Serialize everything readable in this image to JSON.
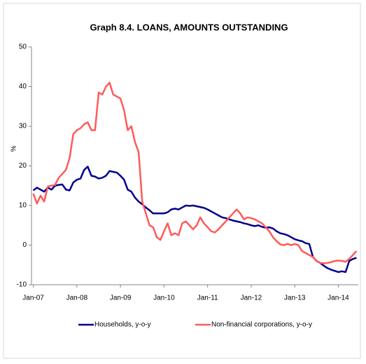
{
  "chart_data": {
    "type": "line",
    "title": "Graph 8.4. LOANS, AMOUNTS OUTSTANDING",
    "y_label": "%",
    "categories": [
      "Jan-07",
      null,
      null,
      null,
      null,
      null,
      null,
      null,
      null,
      null,
      null,
      null,
      "Jan-08",
      null,
      null,
      null,
      null,
      null,
      null,
      null,
      null,
      null,
      null,
      null,
      "Jan-09",
      null,
      null,
      null,
      null,
      null,
      null,
      null,
      null,
      null,
      null,
      null,
      "Jan-10",
      null,
      null,
      null,
      null,
      null,
      null,
      null,
      null,
      null,
      null,
      null,
      "Jan-11",
      null,
      null,
      null,
      null,
      null,
      null,
      null,
      null,
      null,
      null,
      null,
      "Jan-12",
      null,
      null,
      null,
      null,
      null,
      null,
      null,
      null,
      null,
      null,
      null,
      "Jan-13",
      null,
      null,
      null,
      null,
      null,
      null,
      null,
      null,
      null,
      null,
      null,
      "Jan-14",
      null,
      null,
      null,
      null,
      null
    ],
    "series": [
      {
        "name": "Households, y-o-y",
        "color": "#00008b",
        "values": [
          13.8,
          14.5,
          14,
          13.5,
          14.5,
          14,
          15,
          15.2,
          15.3,
          14,
          13.8,
          15.8,
          16.5,
          16.8,
          19,
          19.8,
          17.5,
          17.3,
          16.8,
          17,
          17.5,
          18.7,
          18.5,
          18.3,
          17.5,
          16.5,
          14,
          13.5,
          12,
          11,
          10.3,
          9.5,
          8.8,
          8,
          8,
          8,
          8,
          8.3,
          9,
          9.2,
          9,
          9.5,
          10,
          9.9,
          10,
          9.8,
          9.6,
          9.4,
          9,
          8.5,
          8,
          7.5,
          7,
          6.8,
          6.5,
          6.2,
          6,
          5.8,
          5.5,
          5.3,
          5,
          4.8,
          5,
          4.6,
          4.4,
          4.5,
          4.2,
          3.5,
          3,
          2.8,
          2.5,
          2,
          1.5,
          1.2,
          1,
          0.5,
          0.3,
          -3,
          -4,
          -4.5,
          -5.2,
          -5.8,
          -6.2,
          -6.5,
          -6.8,
          -6.6,
          -6.8,
          -4,
          -3.5,
          -3.2
        ]
      },
      {
        "name": "Non-financial corporations, y-o-y",
        "color": "#ff5a5a",
        "values": [
          13,
          10.5,
          12.5,
          11,
          14.8,
          15,
          15.2,
          17,
          18,
          19,
          22,
          28,
          29,
          29.5,
          30.5,
          31,
          29,
          29,
          38.5,
          38,
          40,
          41,
          38,
          37.5,
          37,
          34,
          29,
          30,
          26,
          23.5,
          11,
          8,
          5,
          4.5,
          2,
          1.3,
          3.5,
          5.5,
          2.5,
          3,
          2.5,
          5.5,
          6,
          5,
          4,
          5,
          7,
          5.5,
          4.5,
          3.5,
          3.2,
          4,
          5,
          6,
          7,
          8,
          9,
          8,
          6.5,
          7,
          6.8,
          6.5,
          6,
          5.5,
          4.5,
          3.5,
          2,
          1,
          0.2,
          0,
          0.3,
          0,
          0.3,
          0,
          -1.5,
          -2,
          -2.5,
          -3,
          -4,
          -4.5,
          -4.6,
          -4.5,
          -4.3,
          -4,
          -3.9,
          -4,
          -4.2,
          -3.5,
          -2.5,
          -1.5
        ]
      }
    ],
    "ylim": [
      -10,
      50
    ],
    "yticks": [
      -10,
      0,
      10,
      20,
      30,
      40,
      50
    ],
    "grid": false
  }
}
